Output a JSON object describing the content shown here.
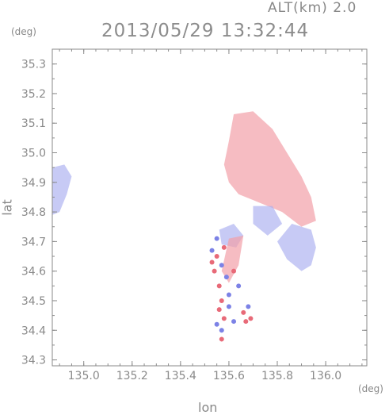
{
  "header": {
    "altitude_label": "ALT(km)",
    "altitude_value": "2.0",
    "timestamp": "2013/05/29 13:32:44"
  },
  "chart_data": {
    "type": "heatmap",
    "title": "2013/05/29 13:32:44",
    "xlabel": "lon",
    "ylabel": "lat",
    "x_unit": "(deg)",
    "y_unit": "(deg)",
    "xlim": [
      134.87,
      136.17
    ],
    "ylim": [
      34.28,
      35.35
    ],
    "x_ticks": [
      135.0,
      135.2,
      135.4,
      135.6,
      135.8,
      136.0
    ],
    "x_tick_labels": [
      "135.0",
      "135.2",
      "135.4",
      "135.6",
      "135.8",
      "136.0"
    ],
    "y_ticks": [
      34.3,
      34.4,
      34.5,
      34.6,
      34.7,
      34.8,
      34.9,
      35.0,
      35.1,
      35.2,
      35.3
    ],
    "y_tick_labels": [
      "34.3",
      "34.4",
      "34.5",
      "34.6",
      "34.7",
      "34.8",
      "34.9",
      "35.0",
      "35.1",
      "35.2",
      "35.3"
    ],
    "grid": false,
    "colors": {
      "positive": "#f2a0a8",
      "negative": "#a9aef0",
      "axis": "#8a8a8a"
    },
    "echo_regions": [
      {
        "sign": "positive",
        "poly": [
          [
            135.62,
            35.13
          ],
          [
            135.7,
            35.14
          ],
          [
            135.78,
            35.08
          ],
          [
            135.84,
            35.0
          ],
          [
            135.9,
            34.92
          ],
          [
            135.94,
            34.85
          ],
          [
            135.96,
            34.77
          ],
          [
            135.9,
            34.75
          ],
          [
            135.82,
            34.8
          ],
          [
            135.76,
            34.82
          ],
          [
            135.7,
            34.84
          ],
          [
            135.64,
            34.86
          ],
          [
            135.6,
            34.9
          ],
          [
            135.58,
            34.96
          ],
          [
            135.6,
            35.04
          ]
        ]
      },
      {
        "sign": "negative",
        "poly": [
          [
            135.86,
            34.76
          ],
          [
            135.94,
            34.74
          ],
          [
            135.96,
            34.68
          ],
          [
            135.94,
            34.62
          ],
          [
            135.9,
            34.6
          ],
          [
            135.84,
            34.64
          ],
          [
            135.8,
            34.7
          ]
        ]
      },
      {
        "sign": "negative",
        "poly": [
          [
            135.7,
            34.82
          ],
          [
            135.78,
            34.82
          ],
          [
            135.82,
            34.76
          ],
          [
            135.76,
            34.72
          ],
          [
            135.7,
            34.76
          ]
        ]
      },
      {
        "sign": "negative",
        "poly": [
          [
            134.87,
            34.95
          ],
          [
            134.92,
            34.96
          ],
          [
            134.95,
            34.92
          ],
          [
            134.93,
            34.86
          ],
          [
            134.9,
            34.8
          ],
          [
            134.87,
            34.79
          ]
        ]
      },
      {
        "sign": "negative",
        "poly": [
          [
            135.56,
            34.74
          ],
          [
            135.62,
            34.76
          ],
          [
            135.66,
            34.72
          ],
          [
            135.63,
            34.68
          ],
          [
            135.57,
            34.69
          ]
        ]
      },
      {
        "sign": "positive",
        "poly": [
          [
            135.6,
            34.71
          ],
          [
            135.66,
            34.72
          ],
          [
            135.64,
            34.62
          ],
          [
            135.6,
            34.56
          ],
          [
            135.57,
            34.6
          ]
        ]
      }
    ],
    "echo_cells": [
      {
        "sign": "positive",
        "lon": 135.55,
        "lat": 34.65
      },
      {
        "sign": "negative",
        "lon": 135.57,
        "lat": 34.62
      },
      {
        "sign": "positive",
        "lon": 135.54,
        "lat": 34.6
      },
      {
        "sign": "negative",
        "lon": 135.59,
        "lat": 34.58
      },
      {
        "sign": "positive",
        "lon": 135.56,
        "lat": 34.55
      },
      {
        "sign": "negative",
        "lon": 135.53,
        "lat": 34.67
      },
      {
        "sign": "positive",
        "lon": 135.58,
        "lat": 34.68
      },
      {
        "sign": "negative",
        "lon": 135.55,
        "lat": 34.71
      },
      {
        "sign": "positive",
        "lon": 135.57,
        "lat": 34.5
      },
      {
        "sign": "negative",
        "lon": 135.6,
        "lat": 34.48
      },
      {
        "sign": "positive",
        "lon": 135.56,
        "lat": 34.47
      },
      {
        "sign": "positive",
        "lon": 135.66,
        "lat": 34.46
      },
      {
        "sign": "negative",
        "lon": 135.68,
        "lat": 34.48
      },
      {
        "sign": "positive",
        "lon": 135.67,
        "lat": 34.43
      },
      {
        "sign": "positive",
        "lon": 135.69,
        "lat": 34.44
      },
      {
        "sign": "negative",
        "lon": 135.62,
        "lat": 34.43
      },
      {
        "sign": "negative",
        "lon": 135.55,
        "lat": 34.42
      },
      {
        "sign": "positive",
        "lon": 135.57,
        "lat": 34.37
      },
      {
        "sign": "negative",
        "lon": 135.64,
        "lat": 34.55
      },
      {
        "sign": "positive",
        "lon": 135.62,
        "lat": 34.6
      },
      {
        "sign": "positive",
        "lon": 135.53,
        "lat": 34.63
      },
      {
        "sign": "negative",
        "lon": 135.6,
        "lat": 34.52
      },
      {
        "sign": "positive",
        "lon": 135.58,
        "lat": 34.44
      },
      {
        "sign": "negative",
        "lon": 135.57,
        "lat": 34.4
      }
    ]
  }
}
